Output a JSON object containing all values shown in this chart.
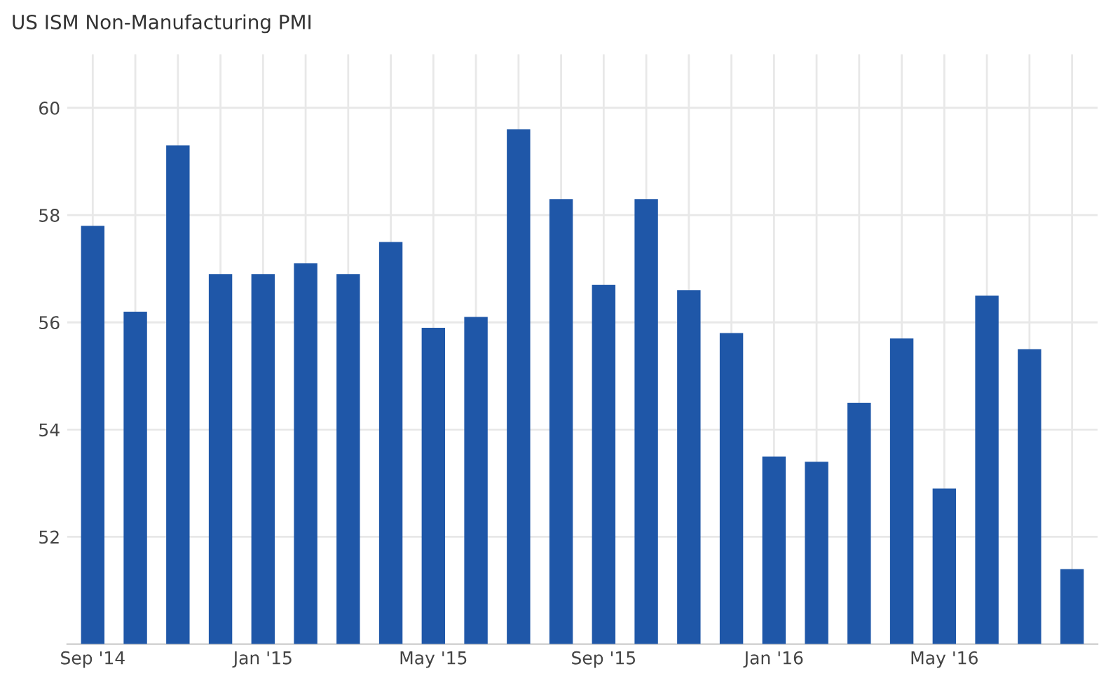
{
  "chart_data": {
    "type": "bar",
    "title": "US ISM Non-Manufacturing PMI",
    "categories": [
      "Sep '14",
      null,
      null,
      null,
      "Jan '15",
      null,
      null,
      null,
      "May '15",
      null,
      null,
      null,
      "Sep '15",
      null,
      null,
      null,
      "Jan '16",
      null,
      null,
      null,
      "May '16",
      null,
      null,
      null
    ],
    "values": [
      57.8,
      56.2,
      59.3,
      56.9,
      56.9,
      57.1,
      56.9,
      57.5,
      55.9,
      56.1,
      59.6,
      58.3,
      56.7,
      58.3,
      56.6,
      55.8,
      53.5,
      53.4,
      54.5,
      55.7,
      52.9,
      56.5,
      55.5,
      51.4
    ],
    "color": "#1f57a8",
    "ylim": [
      50,
      61
    ],
    "yticks": [
      52,
      54,
      56,
      58,
      60
    ],
    "grid": true
  }
}
